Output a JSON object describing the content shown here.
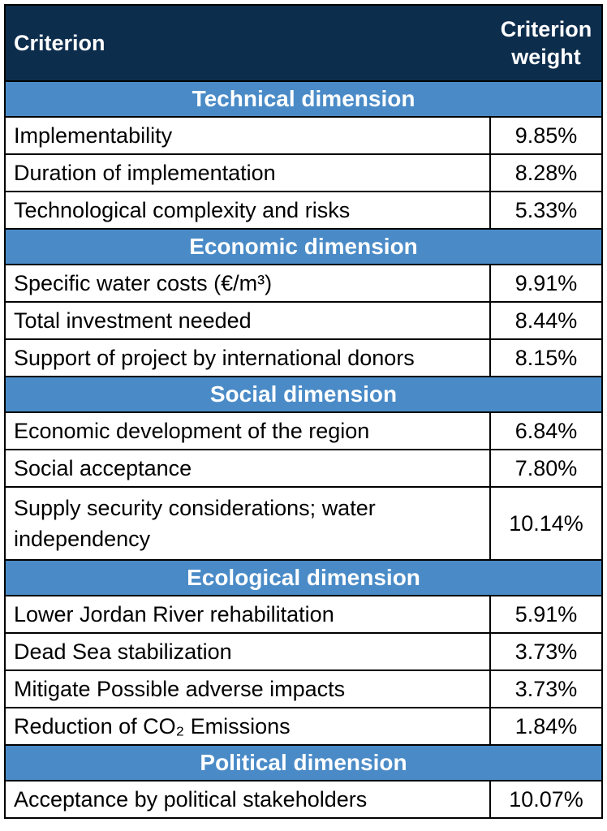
{
  "header": {
    "criterion": "Criterion",
    "weight_line1": "Criterion",
    "weight_line2": "weight"
  },
  "sections": [
    {
      "title": "Technical dimension",
      "rows": [
        {
          "criterion": "Implementability",
          "weight": "9.85%"
        },
        {
          "criterion": "Duration of implementation",
          "weight": "8.28%"
        },
        {
          "criterion": "Technological complexity and risks",
          "weight": "5.33%"
        }
      ]
    },
    {
      "title": "Economic dimension",
      "rows": [
        {
          "criterion": "Specific water costs (€/m³)",
          "weight": "9.91%"
        },
        {
          "criterion": "Total investment needed",
          "weight": "8.44%"
        },
        {
          "criterion": "Support of project by international donors",
          "weight": "8.15%"
        }
      ]
    },
    {
      "title": "Social dimension",
      "rows": [
        {
          "criterion": "Economic development of the region",
          "weight": "6.84%"
        },
        {
          "criterion": "Social acceptance",
          "weight": "7.80%"
        },
        {
          "criterion": "Supply security considerations; water independency",
          "weight": "10.14%"
        }
      ]
    },
    {
      "title": "Ecological dimension",
      "rows": [
        {
          "criterion": "Lower Jordan River rehabilitation",
          "weight": "5.91%"
        },
        {
          "criterion": "Dead Sea stabilization",
          "weight": "3.73%"
        },
        {
          "criterion": "Mitigate Possible adverse impacts",
          "weight": "3.73%"
        },
        {
          "criterion": "Reduction of CO₂ Emissions",
          "weight": "1.84%"
        }
      ]
    },
    {
      "title": "Political dimension",
      "rows": [
        {
          "criterion": "Acceptance by political stakeholders",
          "weight": "10.07%"
        }
      ]
    }
  ],
  "colors": {
    "header_bg": "#0d2d4d",
    "section_bg": "#4a8bc7",
    "border": "#000000"
  }
}
